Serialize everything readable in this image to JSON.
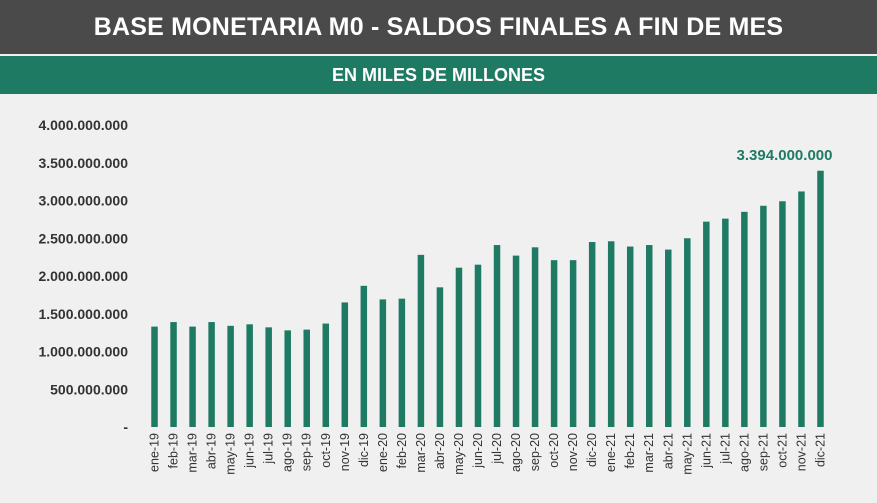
{
  "title": "BASE MONETARIA M0 - SALDOS FINALES A FIN DE MES",
  "subtitle": "EN MILES DE MILLONES",
  "colors": {
    "bar": "#1f7a64",
    "title_bg": "#4a4a4a",
    "subtitle_bg": "#1f7a64",
    "background": "#f0f0f0",
    "text": "#333333"
  },
  "chart_data": {
    "type": "bar",
    "categories": [
      "ene-19",
      "feb-19",
      "mar-19",
      "abr-19",
      "may-19",
      "jun-19",
      "jul-19",
      "ago-19",
      "sep-19",
      "oct-19",
      "nov-19",
      "dic-19",
      "ene-20",
      "feb-20",
      "mar-20",
      "abr-20",
      "may-20",
      "jun-20",
      "jul-20",
      "ago-20",
      "sep-20",
      "oct-20",
      "nov-20",
      "dic-20",
      "ene-21",
      "feb-21",
      "mar-21",
      "abr-21",
      "may-21",
      "jun-21",
      "jul-21",
      "ago-21",
      "sep-21",
      "oct-21",
      "nov-21",
      "dic-21"
    ],
    "values": [
      1330000000,
      1390000000,
      1330000000,
      1390000000,
      1340000000,
      1360000000,
      1320000000,
      1280000000,
      1290000000,
      1370000000,
      1650000000,
      1870000000,
      1690000000,
      1700000000,
      2280000000,
      1850000000,
      2110000000,
      2150000000,
      2410000000,
      2270000000,
      2380000000,
      2210000000,
      2210000000,
      2450000000,
      2460000000,
      2390000000,
      2410000000,
      2350000000,
      2500000000,
      2720000000,
      2760000000,
      2850000000,
      2930000000,
      2990000000,
      3120000000,
      3394000000
    ],
    "ylim": [
      0,
      4000000000
    ],
    "yticks": [
      0,
      500000000,
      1000000000,
      1500000000,
      2000000000,
      2500000000,
      3000000000,
      3500000000,
      4000000000
    ],
    "ytick_labels": [
      "-",
      "500.000.000",
      "1.000.000.000",
      "1.500.000.000",
      "2.000.000.000",
      "2.500.000.000",
      "3.000.000.000",
      "3.500.000.000",
      "4.000.000.000"
    ],
    "annotation": {
      "category": "dic-21",
      "text": "3.394.000.000"
    },
    "grid": false,
    "legend": "none"
  }
}
